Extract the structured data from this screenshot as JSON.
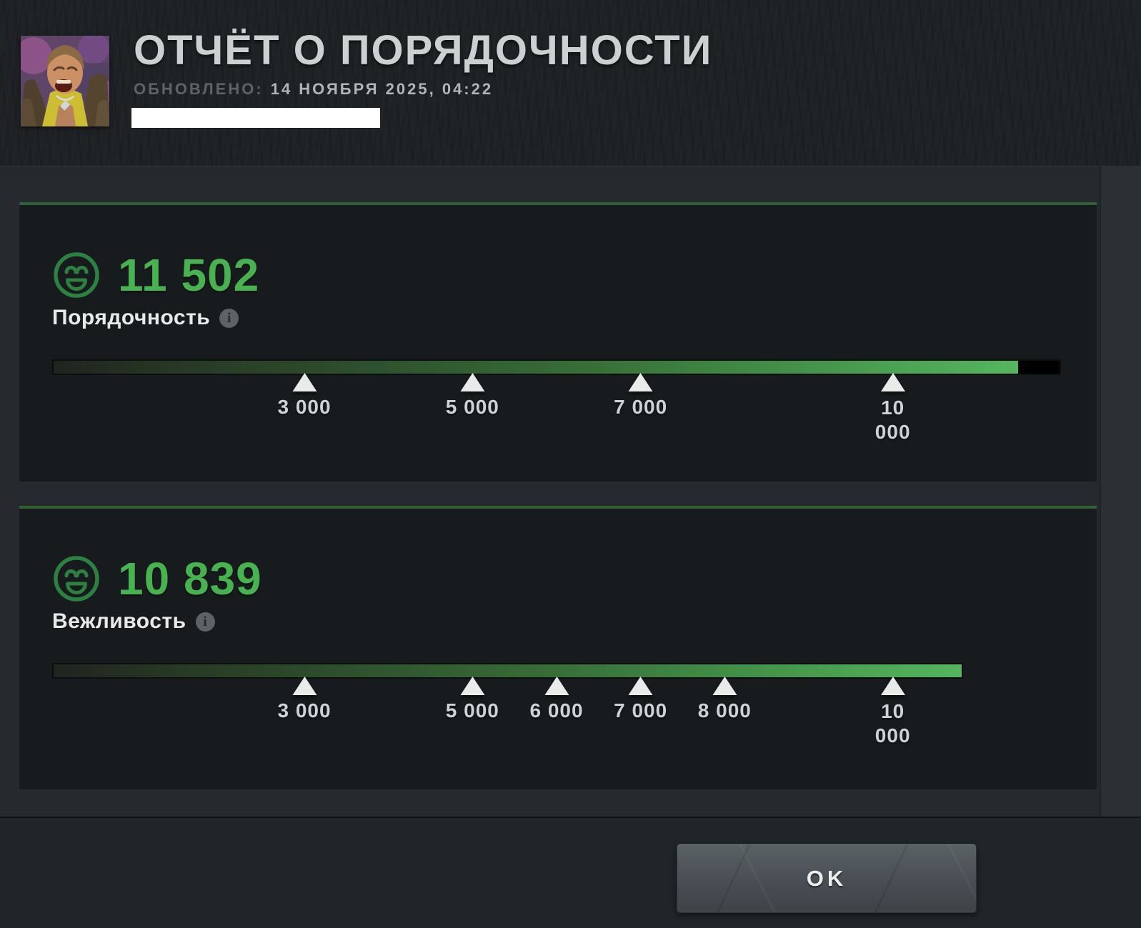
{
  "header": {
    "title": "ОТЧЁТ О ПОРЯДОЧНОСТИ",
    "updated_label": "ОБНОВЛЕНО:",
    "updated_value": "14 НОЯБРЯ 2025, 04:22"
  },
  "footer": {
    "ok_label": "OK"
  },
  "colors": {
    "accent_green": "#48b150",
    "card_border_green": "#2f6135",
    "bar_gradient_end": "#54b65e",
    "bar_unfilled": "#000000",
    "marker_white": "#e9ebeb"
  },
  "icons": {
    "smiley": "happy-face-icon",
    "info": "info-icon",
    "marker": "triangle-marker-icon"
  },
  "chart_data": [
    {
      "type": "bar",
      "title": "Порядочность",
      "value": 11502,
      "value_display": "11 502",
      "axis_min": 0,
      "axis_max": 12000,
      "track_max": 12000,
      "markers": [
        {
          "value": 3000,
          "label": "3 000"
        },
        {
          "value": 5000,
          "label": "5 000"
        },
        {
          "value": 7000,
          "label": "7 000"
        },
        {
          "value": 10000,
          "label": "10 000"
        }
      ]
    },
    {
      "type": "bar",
      "title": "Вежливость",
      "value": 10839,
      "value_display": "10 839",
      "axis_min": 0,
      "axis_max": 12000,
      "track_max": 10839,
      "markers": [
        {
          "value": 3000,
          "label": "3 000"
        },
        {
          "value": 5000,
          "label": "5 000"
        },
        {
          "value": 6000,
          "label": "6 000"
        },
        {
          "value": 7000,
          "label": "7 000"
        },
        {
          "value": 8000,
          "label": "8 000"
        },
        {
          "value": 10000,
          "label": "10 000"
        }
      ]
    }
  ]
}
